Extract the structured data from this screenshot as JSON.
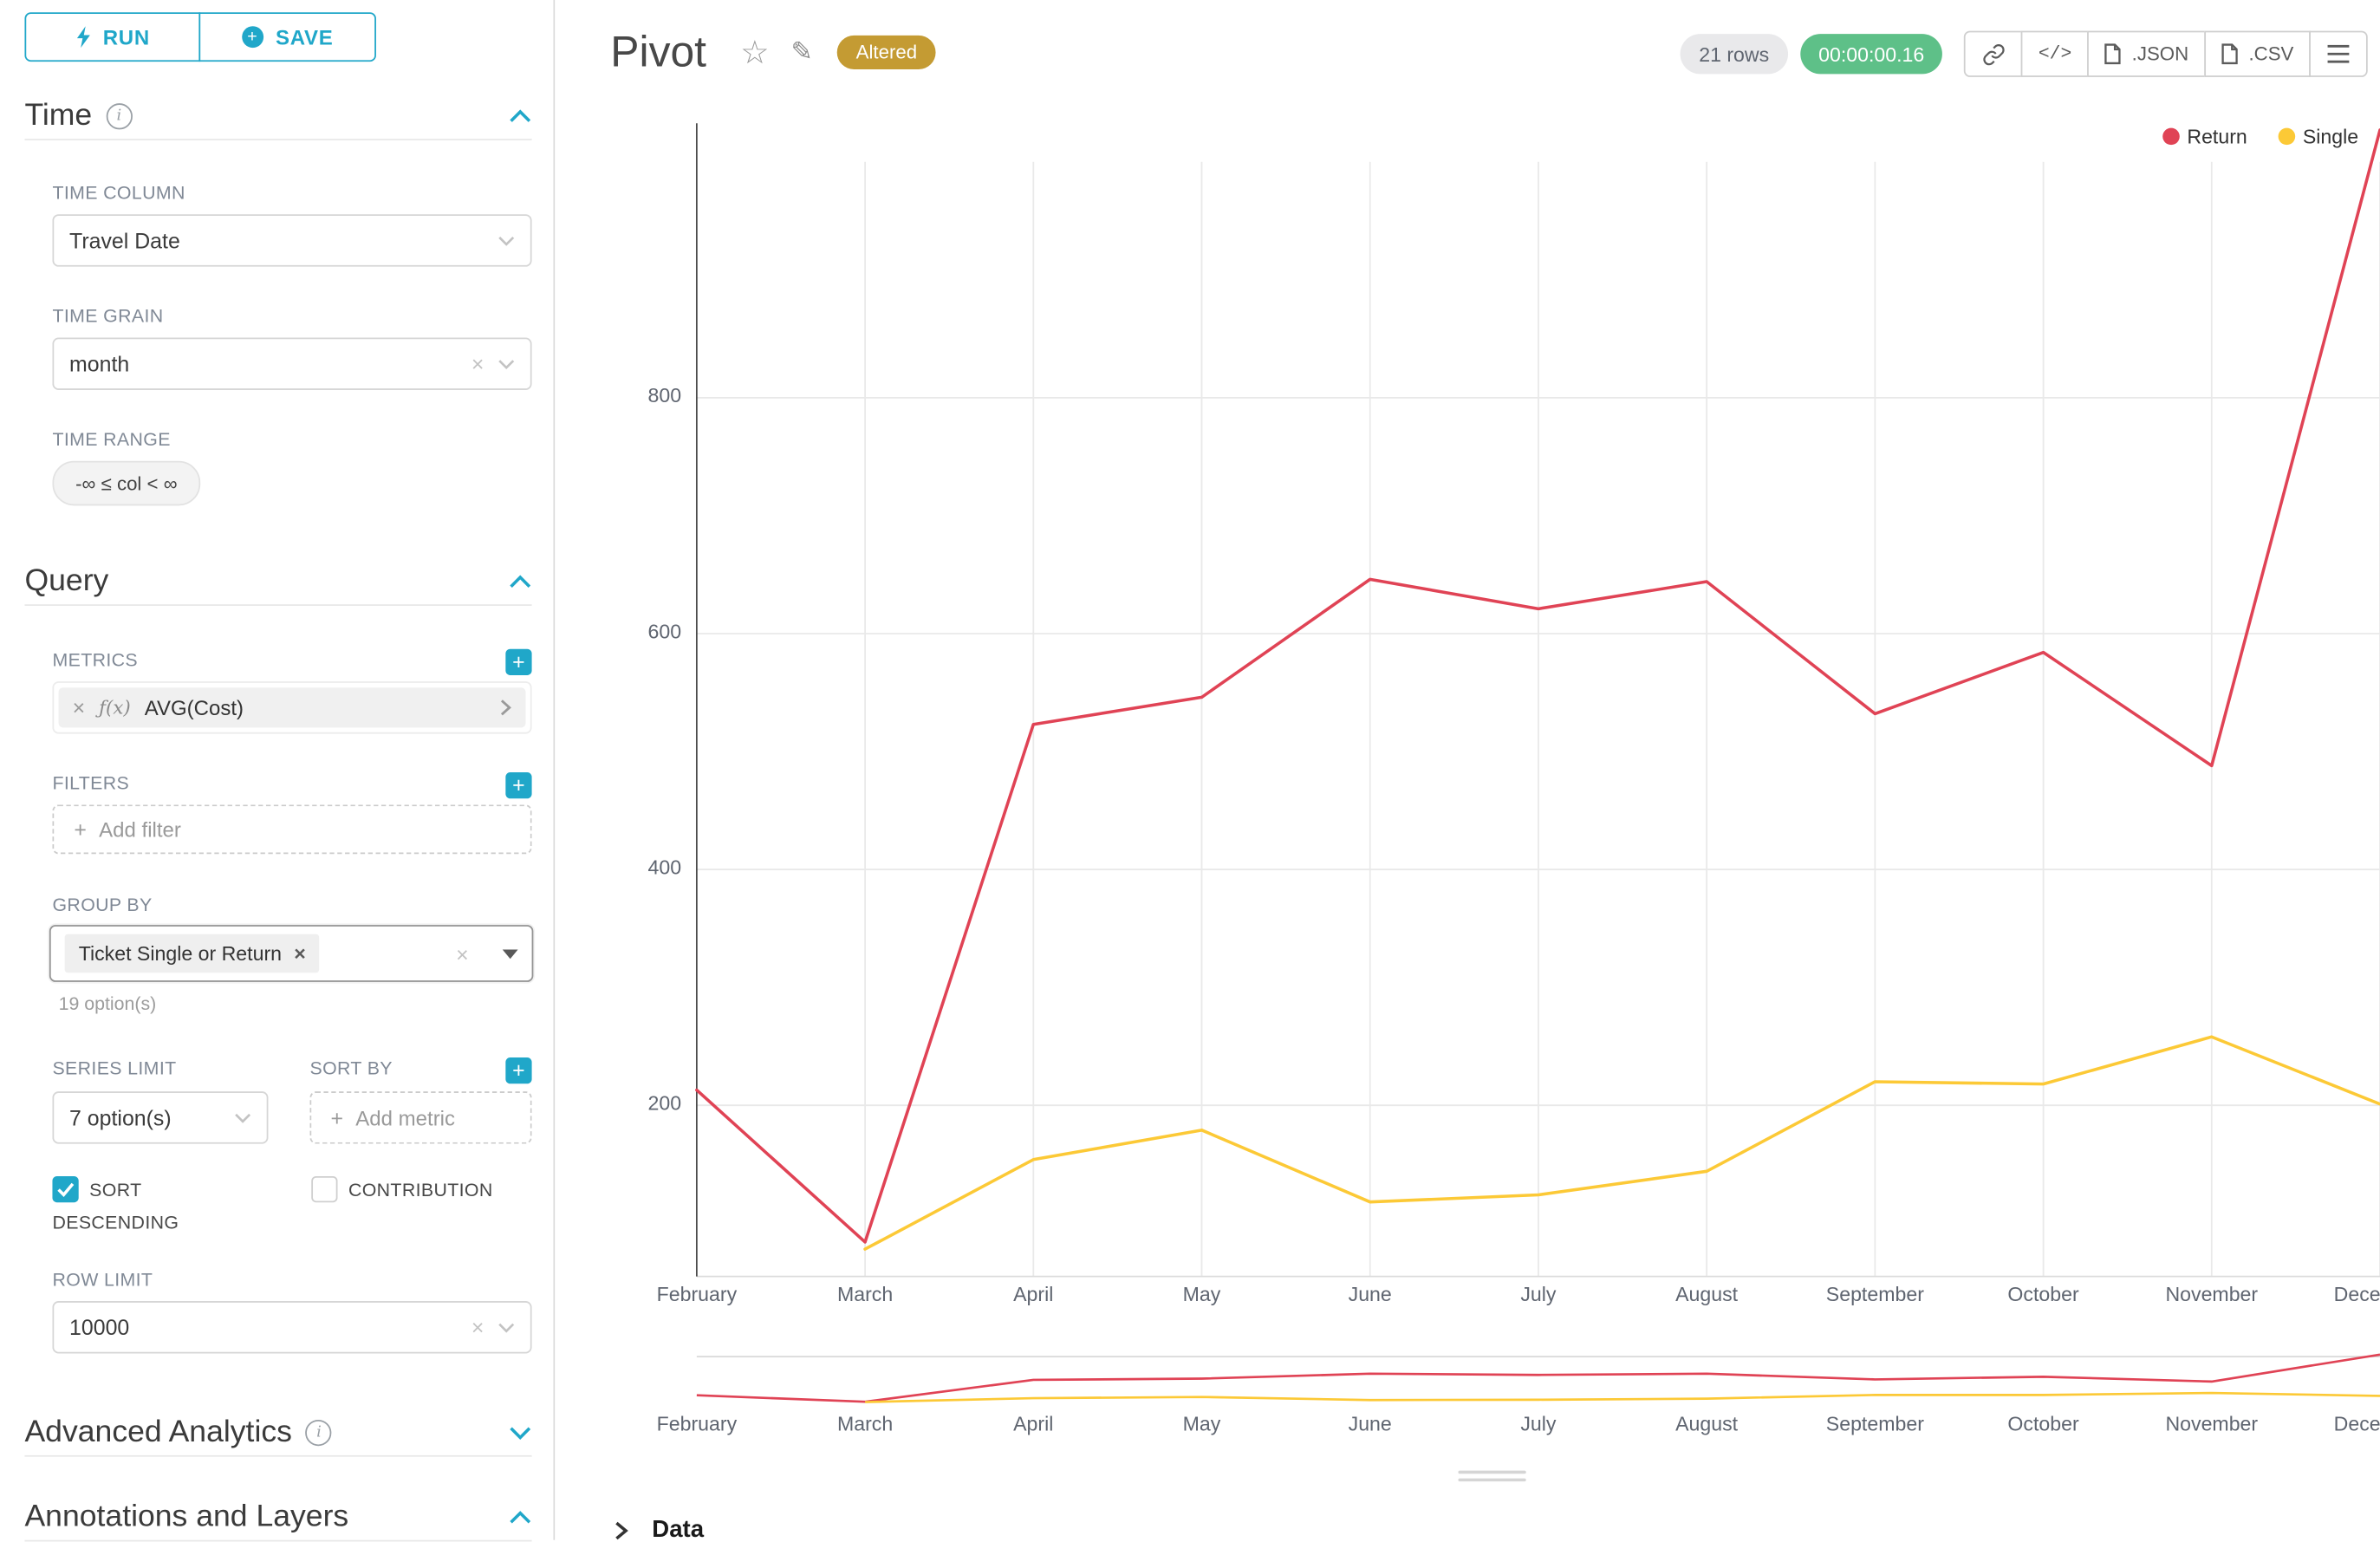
{
  "colors": {
    "accent": "#20a7c9",
    "series_return": "#e04355",
    "series_single": "#fcc936",
    "altered_badge_bg": "#c49b33",
    "timer_badge_bg": "#5ec088"
  },
  "sidebar": {
    "run_label": "RUN",
    "save_label": "SAVE",
    "time": {
      "title": "Time",
      "time_column_label": "TIME COLUMN",
      "time_column_value": "Travel Date",
      "time_grain_label": "TIME GRAIN",
      "time_grain_value": "month",
      "time_range_label": "TIME RANGE",
      "time_range_value": "-∞ ≤ col < ∞"
    },
    "query": {
      "title": "Query",
      "metrics_label": "METRICS",
      "metric_prefix": "ƒ(x)",
      "metric_value": "AVG(Cost)",
      "filters_label": "FILTERS",
      "add_filter_label": "Add filter",
      "group_by_label": "GROUP BY",
      "group_by_tag": "Ticket Single or Return",
      "group_by_hint": "19 option(s)",
      "series_limit_label": "SERIES LIMIT",
      "series_limit_value": "7 option(s)",
      "sort_by_label": "SORT BY",
      "add_metric_label": "Add metric",
      "sort_descending_label": "SORT DESCENDING",
      "contribution_label": "CONTRIBUTION",
      "row_limit_label": "ROW LIMIT",
      "row_limit_value": "10000"
    },
    "advanced_analytics_title": "Advanced Analytics",
    "annotations_title": "Annotations and Layers"
  },
  "header": {
    "title": "Pivot",
    "altered_badge": "Altered",
    "rows_badge": "21 rows",
    "timer_badge": "00:00:00.16",
    "code_label": "</>",
    "json_label": ".JSON",
    "csv_label": ".CSV"
  },
  "chart_data": {
    "type": "line",
    "title": "",
    "x": [
      "February",
      "March",
      "April",
      "May",
      "June",
      "July",
      "August",
      "September",
      "October",
      "November",
      "December"
    ],
    "series": [
      {
        "name": "Return",
        "color": "#e04355",
        "values": [
          213,
          84,
          523,
          546,
          646,
          621,
          644,
          532,
          584,
          488,
          1027
        ]
      },
      {
        "name": "Single",
        "color": "#fcc936",
        "values": [
          null,
          78,
          154,
          179,
          118,
          124,
          144,
          220,
          218,
          258,
          201
        ]
      }
    ],
    "y_ticks": [
      200,
      400,
      600,
      800
    ],
    "ylim": [
      55,
      1040
    ],
    "xlabel": "",
    "ylabel": "",
    "grid": true,
    "legend_position": "top-right",
    "has_mini_preview": true
  },
  "data_panel": {
    "title": "Data"
  }
}
